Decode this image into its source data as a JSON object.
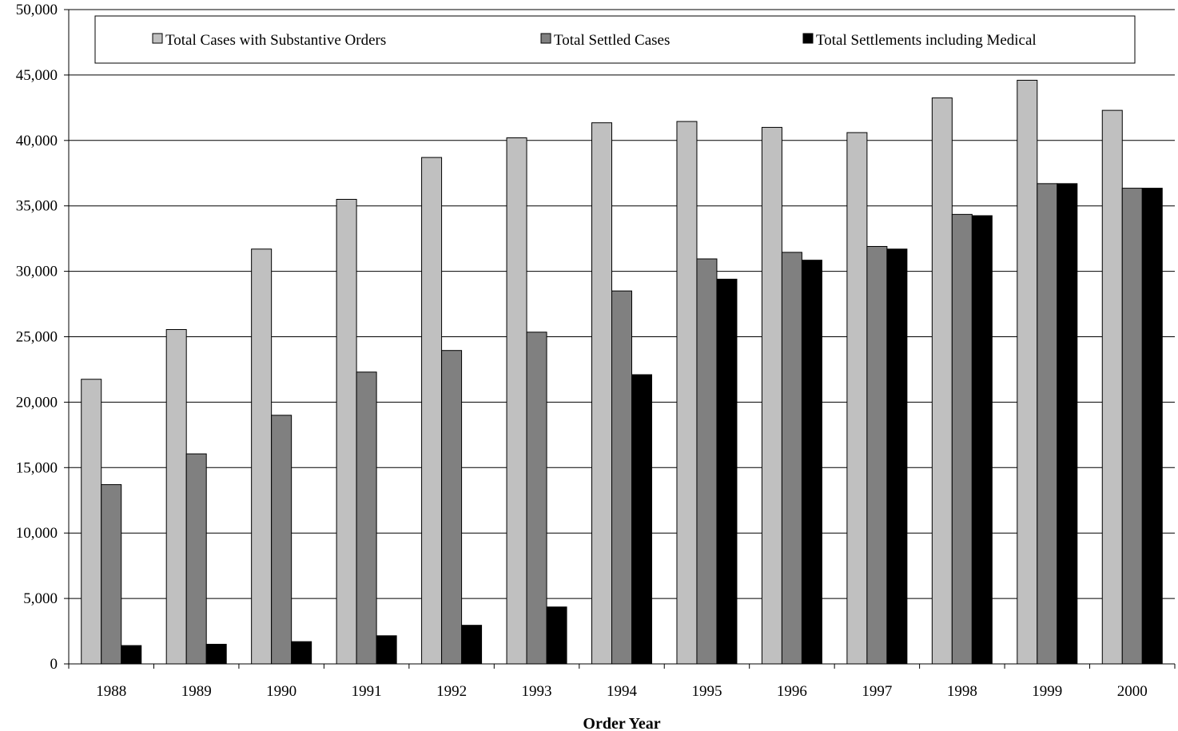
{
  "chart_data": {
    "type": "bar",
    "title": "",
    "xlabel": "Order Year",
    "ylabel": "",
    "ylim": [
      0,
      50000
    ],
    "yticks": [
      0,
      5000,
      10000,
      15000,
      20000,
      25000,
      30000,
      35000,
      40000,
      45000,
      50000
    ],
    "ytick_labels": [
      "0",
      "5,000",
      "10,000",
      "15,000",
      "20,000",
      "25,000",
      "30,000",
      "35,000",
      "40,000",
      "45,000",
      "50,000"
    ],
    "grid": true,
    "legend_position": "top",
    "categories": [
      "1988",
      "1989",
      "1990",
      "1991",
      "1992",
      "1993",
      "1994",
      "1995",
      "1996",
      "1997",
      "1998",
      "1999",
      "2000"
    ],
    "series": [
      {
        "name": "Total Cases with Substantive Orders",
        "color": "#c0c0c0",
        "values": [
          21750,
          25550,
          31700,
          35500,
          38700,
          40200,
          41350,
          41450,
          41000,
          40600,
          43250,
          44600,
          42300
        ]
      },
      {
        "name": "Total Settled Cases",
        "color": "#808080",
        "values": [
          13700,
          16050,
          19000,
          22300,
          23950,
          25350,
          28500,
          30950,
          31450,
          31900,
          34350,
          36700,
          36350
        ]
      },
      {
        "name": "Total Settlements including Medical",
        "color": "#000000",
        "values": [
          1400,
          1500,
          1700,
          2150,
          2950,
          4350,
          22100,
          29400,
          30850,
          31700,
          34250,
          36700,
          36350
        ]
      }
    ]
  }
}
